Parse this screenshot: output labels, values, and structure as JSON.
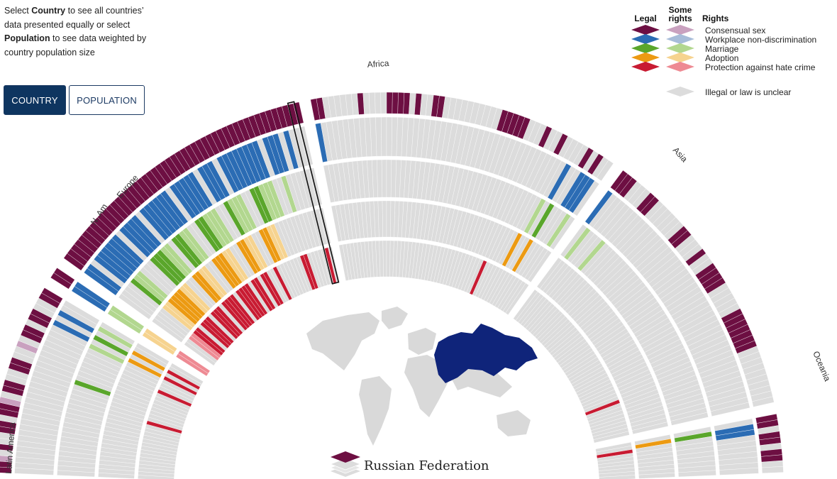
{
  "intro": {
    "t1": "Select ",
    "country_word": "Country",
    "t2": " to see all countries’ data presented equally or select ",
    "population_word": "Population",
    "t3": " to see data weighted by country population size"
  },
  "buttons": {
    "country": "COUNTRY",
    "population": "POPULATION",
    "active": "country"
  },
  "legend": {
    "headers": {
      "legal": "Legal",
      "some_rights_line1": "Some",
      "some_rights_line2": "rights",
      "rights": "Rights"
    },
    "items": [
      {
        "label": "Consensual sex",
        "legal_color": "#6d0f42",
        "some_color": "#c9a1bf"
      },
      {
        "label": "Workplace non-discrimination",
        "legal_color": "#2b6cb4",
        "some_color": "#a7bcd9"
      },
      {
        "label": "Marriage",
        "legal_color": "#5aa62b",
        "some_color": "#b2d78f"
      },
      {
        "label": "Adoption",
        "legal_color": "#ec9a12",
        "some_color": "#f6d38f"
      },
      {
        "label": "Protection against hate crime",
        "legal_color": "#c81b32",
        "some_color": "#ee8a93"
      }
    ],
    "illegal": {
      "label": "Illegal or law is unclear",
      "color": "#dcdcdc"
    }
  },
  "regions": [
    "Latin America",
    "N. Am",
    "Europe",
    "Africa",
    "Asia",
    "Oceania"
  ],
  "selected_country": "Russian Federation",
  "chart_data": {
    "type": "radial",
    "rings": [
      "Consensual sex",
      "Workplace non-discrimination",
      "Marriage",
      "Adoption",
      "Protection against hate crime"
    ],
    "status_scale": {
      "0": "Illegal or law is unclear",
      "1": "Some rights",
      "2": "Legal"
    },
    "country_count": 196,
    "sectors": [
      {
        "region": "Latin America",
        "count": 33,
        "rights": [
          [
            [
              0,
              2
            ],
            [
              1,
              2
            ],
            [
              2,
              1
            ],
            [
              3,
              0
            ],
            [
              4,
              2
            ],
            [
              5,
              0
            ],
            [
              7,
              2
            ],
            [
              9,
              0
            ],
            [
              10,
              2
            ],
            [
              12,
              1
            ],
            [
              13,
              0
            ],
            [
              14,
              2
            ],
            [
              16,
              0
            ],
            [
              18,
              2
            ],
            [
              20,
              0
            ],
            [
              22,
              1
            ],
            [
              23,
              0
            ],
            [
              24,
              2
            ],
            [
              26,
              0
            ],
            [
              27,
              2
            ],
            [
              29,
              0
            ],
            [
              31,
              2
            ]
          ],
          [
            [
              28,
              2
            ],
            [
              29,
              0
            ],
            [
              30,
              2
            ],
            [
              31,
              0
            ]
          ],
          [
            [
              19,
              2
            ],
            [
              20,
              0
            ],
            [
              27,
              1
            ],
            [
              28,
              0
            ],
            [
              29,
              2
            ],
            [
              30,
              0
            ],
            [
              31,
              1
            ],
            [
              32,
              0
            ]
          ],
          [
            [
              28,
              2
            ],
            [
              29,
              0
            ],
            [
              30,
              2
            ],
            [
              31,
              0
            ]
          ],
          [
            [
              15,
              2
            ],
            [
              16,
              0
            ],
            [
              24,
              2
            ],
            [
              25,
              0
            ],
            [
              28,
              2
            ],
            [
              29,
              0
            ],
            [
              30,
              2
            ],
            [
              31,
              0
            ]
          ]
        ]
      },
      {
        "region": "N. Am",
        "count": 2,
        "rights": [
          [
            [
              0,
              2
            ]
          ],
          [
            [
              0,
              2
            ]
          ],
          [
            [
              0,
              1
            ]
          ],
          [
            [
              0,
              1
            ]
          ],
          [
            [
              0,
              1
            ]
          ]
        ]
      },
      {
        "region": "Europe",
        "count": 49,
        "rights": [
          [
            [
              0,
              2
            ]
          ],
          [
            [
              0,
              2
            ],
            [
              2,
              0
            ],
            [
              3,
              2
            ],
            [
              9,
              0
            ],
            [
              10,
              2
            ],
            [
              14,
              0
            ],
            [
              15,
              2
            ],
            [
              21,
              0
            ],
            [
              22,
              2
            ],
            [
              27,
              0
            ],
            [
              28,
              2
            ],
            [
              31,
              0
            ],
            [
              32,
              2
            ],
            [
              40,
              0
            ],
            [
              41,
              2
            ],
            [
              44,
              0
            ],
            [
              45,
              2
            ],
            [
              46,
              0
            ]
          ],
          [
            [
              0,
              0
            ],
            [
              4,
              2
            ],
            [
              5,
              1
            ],
            [
              7,
              0
            ],
            [
              10,
              2
            ],
            [
              13,
              1
            ],
            [
              15,
              0
            ],
            [
              16,
              2
            ],
            [
              18,
              1
            ],
            [
              20,
              0
            ],
            [
              22,
              2
            ],
            [
              24,
              1
            ],
            [
              27,
              0
            ],
            [
              29,
              2
            ],
            [
              30,
              1
            ],
            [
              33,
              0
            ],
            [
              35,
              2
            ],
            [
              37,
              1
            ],
            [
              40,
              0
            ],
            [
              42,
              1
            ],
            [
              43,
              0
            ]
          ],
          [
            [
              0,
              0
            ],
            [
              4,
              1
            ],
            [
              6,
              2
            ],
            [
              10,
              1
            ],
            [
              12,
              0
            ],
            [
              14,
              2
            ],
            [
              16,
              1
            ],
            [
              18,
              0
            ],
            [
              20,
              2
            ],
            [
              23,
              1
            ],
            [
              25,
              0
            ],
            [
              27,
              2
            ],
            [
              29,
              1
            ],
            [
              31,
              0
            ],
            [
              33,
              2
            ],
            [
              35,
              1
            ],
            [
              37,
              0
            ]
          ],
          [
            [
              0,
              0
            ],
            [
              2,
              1
            ],
            [
              4,
              2
            ],
            [
              6,
              0
            ],
            [
              7,
              2
            ],
            [
              10,
              0
            ],
            [
              11,
              2
            ],
            [
              14,
              0
            ],
            [
              15,
              2
            ],
            [
              19,
              0
            ],
            [
              20,
              2
            ],
            [
              24,
              0
            ],
            [
              25,
              2
            ],
            [
              27,
              0
            ],
            [
              28,
              2
            ],
            [
              30,
              0
            ],
            [
              32,
              2
            ],
            [
              33,
              0
            ],
            [
              40,
              2
            ],
            [
              42,
              0
            ],
            [
              47,
              2
            ],
            [
              48,
              0
            ]
          ]
        ]
      },
      {
        "region": "Africa",
        "count": 54,
        "rights": [
          [
            [
              0,
              2
            ],
            [
              2,
              0
            ],
            [
              8,
              2
            ],
            [
              9,
              0
            ],
            [
              13,
              2
            ],
            [
              17,
              0
            ],
            [
              18,
              2
            ],
            [
              19,
              0
            ],
            [
              21,
              2
            ],
            [
              23,
              0
            ],
            [
              33,
              2
            ],
            [
              38,
              0
            ],
            [
              41,
              2
            ],
            [
              42,
              0
            ],
            [
              44,
              2
            ],
            [
              45,
              0
            ],
            [
              49,
              2
            ],
            [
              50,
              0
            ],
            [
              51,
              2
            ],
            [
              52,
              0
            ]
          ],
          [
            [
              0,
              2
            ],
            [
              1,
              0
            ],
            [
              47,
              2
            ],
            [
              48,
              0
            ],
            [
              50,
              2
            ],
            [
              53,
              0
            ]
          ],
          [
            [
              46,
              1
            ],
            [
              47,
              0
            ],
            [
              48,
              2
            ],
            [
              49,
              0
            ],
            [
              52,
              1
            ],
            [
              53,
              0
            ]
          ],
          [
            [
              45,
              2
            ],
            [
              46,
              0
            ],
            [
              48,
              2
            ],
            [
              49,
              0
            ]
          ],
          [
            [
              40,
              2
            ],
            [
              41,
              0
            ]
          ]
        ]
      },
      {
        "region": "Asia",
        "count": 48,
        "rights": [
          [
            [
              0,
              2
            ],
            [
              3,
              0
            ],
            [
              6,
              2
            ],
            [
              8,
              0
            ],
            [
              14,
              2
            ],
            [
              16,
              0
            ],
            [
              19,
              2
            ],
            [
              20,
              0
            ],
            [
              22,
              2
            ],
            [
              26,
              0
            ],
            [
              31,
              2
            ],
            [
              38,
              0
            ]
          ],
          [
            [
              0,
              2
            ],
            [
              1,
              0
            ]
          ],
          [
            [
              1,
              1
            ],
            [
              2,
              0
            ],
            [
              5,
              1
            ],
            [
              6,
              0
            ]
          ],
          [
            [
              0,
              0
            ]
          ],
          [
            [
              38,
              2
            ],
            [
              39,
              0
            ]
          ]
        ]
      },
      {
        "region": "Oceania",
        "count": 10,
        "rights": [
          [
            [
              0,
              2
            ],
            [
              2,
              0
            ],
            [
              3,
              2
            ],
            [
              5,
              0
            ],
            [
              6,
              2
            ],
            [
              8,
              0
            ]
          ],
          [
            [
              1,
              2
            ],
            [
              3,
              0
            ]
          ],
          [
            [
              1,
              2
            ],
            [
              2,
              0
            ]
          ],
          [
            [
              1,
              2
            ],
            [
              2,
              0
            ]
          ],
          [
            [
              2,
              2
            ],
            [
              3,
              0
            ]
          ]
        ]
      }
    ]
  }
}
